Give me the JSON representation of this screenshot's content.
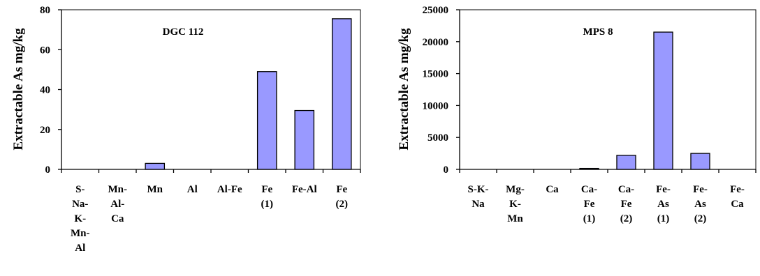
{
  "chart_data": [
    {
      "type": "bar",
      "title": "DGC 112",
      "ylabel": "Extractable As mg/kg",
      "xlabel": "",
      "ylim": [
        0,
        80
      ],
      "yticks": [
        0,
        20,
        40,
        60,
        80
      ],
      "grid": false,
      "bar_color": "#9999ff",
      "categories": [
        [
          "S-",
          "Na-",
          "K-",
          "Mn-",
          "Al"
        ],
        [
          "Mn-",
          "Al-",
          "Ca"
        ],
        [
          "Mn"
        ],
        [
          "Al"
        ],
        [
          "Al-Fe"
        ],
        [
          "Fe",
          "(1)"
        ],
        [
          "Fe-Al"
        ],
        [
          "Fe",
          "(2)"
        ]
      ],
      "values": [
        0,
        0,
        3,
        0,
        0,
        49,
        29.5,
        75.5
      ]
    },
    {
      "type": "bar",
      "title": "MPS 8",
      "ylabel": "Extractable As mg/kg",
      "xlabel": "",
      "ylim": [
        0,
        25000
      ],
      "yticks": [
        0,
        5000,
        10000,
        15000,
        20000,
        25000
      ],
      "grid": false,
      "bar_color": "#9999ff",
      "categories": [
        [
          "S-K-",
          "Na"
        ],
        [
          "Mg-",
          "K-",
          "Mn"
        ],
        [
          "Ca"
        ],
        [
          "Ca-",
          "Fe",
          "(1)"
        ],
        [
          "Ca-",
          "Fe",
          "(2)"
        ],
        [
          "Fe-",
          "As",
          "(1)"
        ],
        [
          "Fe-",
          "As",
          "(2)"
        ],
        [
          "Fe-",
          "Ca"
        ]
      ],
      "values": [
        0,
        0,
        0,
        150,
        2200,
        21500,
        2500,
        0
      ]
    }
  ]
}
